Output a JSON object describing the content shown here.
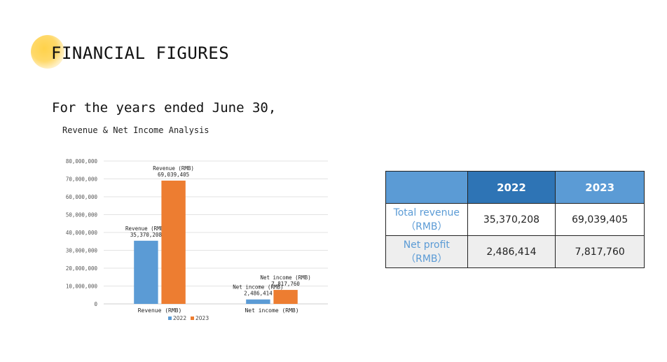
{
  "slide": {
    "title": "FINANCIAL FIGURES",
    "subtitle": "For the years ended June 30,"
  },
  "chart_data": {
    "type": "bar",
    "title": "Revenue & Net Income Analysis",
    "categories": [
      "Revenue (RMB)",
      "Net income (RMB)"
    ],
    "series": [
      {
        "name": "2022",
        "values": [
          35370208,
          2486414
        ],
        "color": "#5b9bd5"
      },
      {
        "name": "2023",
        "values": [
          69039405,
          7817760
        ],
        "color": "#ed7d31"
      }
    ],
    "data_labels": [
      [
        "Revenue (RMB)\n35,370,208",
        "Net income (RMB)\n2,486,414"
      ],
      [
        "Revenue (RMB)\n69,039,405",
        "Net income (RMB)\n7,817,760"
      ]
    ],
    "y_ticks": [
      "0",
      "10,000,000",
      "20,000,000",
      "30,000,000",
      "40,000,000",
      "50,000,000",
      "60,000,000",
      "70,000,000",
      "80,000,000"
    ],
    "ylim": [
      0,
      80000000
    ],
    "grid": true,
    "legend_position": "bottom"
  },
  "table": {
    "headers": [
      "",
      "2022",
      "2023"
    ],
    "rows": [
      {
        "label_line1": "Total revenue",
        "label_line2": "（RMB）",
        "v2022": "35,370,208",
        "v2023": "69,039,405"
      },
      {
        "label_line1": "Net profit",
        "label_line2": "（RMB）",
        "v2022": "2,486,414",
        "v2023": "7,817,760"
      }
    ],
    "colors": {
      "header_2022": "#2e74b5",
      "header_other": "#5b9bd5",
      "label_text": "#5b9bd5",
      "alt_row": "#eeeeee"
    }
  }
}
